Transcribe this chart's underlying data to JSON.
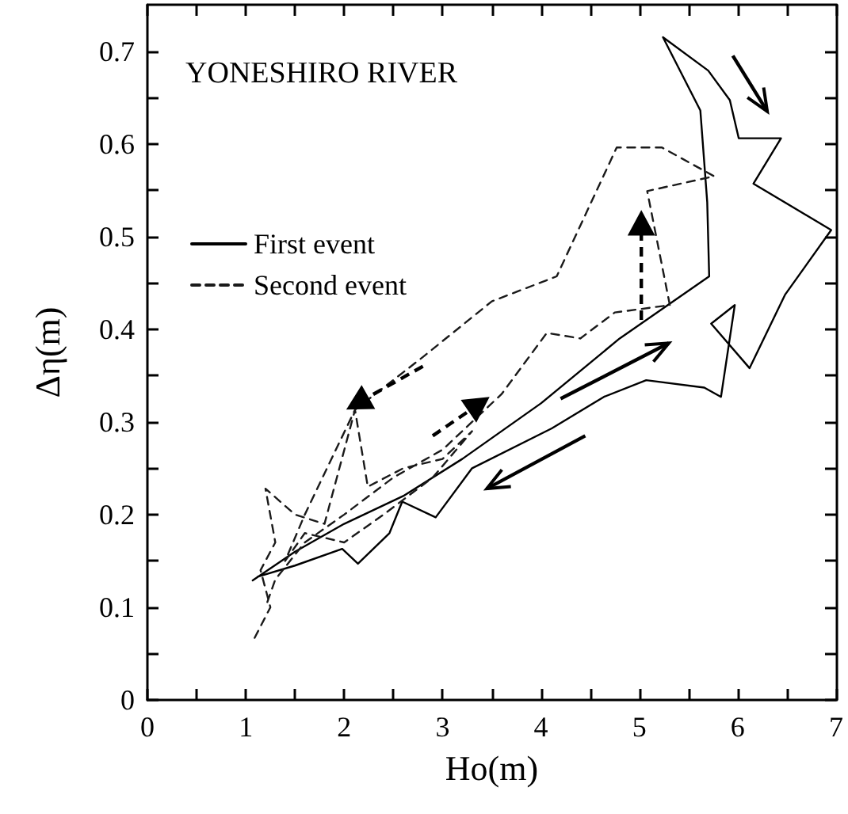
{
  "chart_data": {
    "type": "line",
    "title": "YONESHIRO RIVER",
    "xlabel": "Ho(m)",
    "ylabel": "Δη(m)",
    "legend": "top left",
    "marker": "none",
    "xlim": [
      0,
      7
    ],
    "ylim": [
      0,
      0.75
    ],
    "xticks": [
      0,
      {
        "value": 0.5,
        "label": null
      },
      1,
      {
        "value": 1.5,
        "label": null
      },
      2,
      {
        "value": 2.5,
        "label": null
      },
      3,
      {
        "value": 3.5,
        "label": null
      },
      4,
      {
        "value": 4.5,
        "label": null
      },
      5,
      {
        "value": 5.5,
        "label": null
      },
      6,
      {
        "value": 6.5,
        "label": null
      },
      7
    ],
    "yticks": [
      0,
      {
        "value": 0.05,
        "label": null
      },
      0.1,
      {
        "value": 0.15,
        "label": null
      },
      0.2,
      {
        "value": 0.25,
        "label": null
      },
      0.3,
      {
        "value": 0.35,
        "label": null
      },
      0.4,
      {
        "value": 0.45,
        "label": null
      },
      0.5,
      {
        "value": 0.55,
        "label": null
      },
      0.6,
      {
        "value": 0.65,
        "label": null
      },
      0.7
    ],
    "series": [
      {
        "name": "First event",
        "color": "#000000",
        "line_style": "solid",
        "x": [
          1.07,
          1.5,
          2.0,
          2.6,
          3.2,
          4.0,
          4.8,
          5.71,
          5.69,
          5.62,
          5.24,
          5.7,
          5.92,
          6.01,
          6.44,
          6.16,
          6.95,
          6.48,
          6.12,
          5.73,
          5.97,
          5.83,
          5.66,
          5.07,
          4.64,
          4.11,
          3.3,
          2.93,
          2.59,
          2.46,
          2.14,
          1.98,
          1.5,
          1.12
        ],
        "values": [
          0.129,
          0.16,
          0.19,
          0.22,
          0.26,
          0.32,
          0.39,
          0.457,
          0.537,
          0.636,
          0.715,
          0.679,
          0.647,
          0.606,
          0.606,
          0.557,
          0.507,
          0.437,
          0.358,
          0.406,
          0.426,
          0.327,
          0.337,
          0.345,
          0.327,
          0.293,
          0.25,
          0.197,
          0.214,
          0.18,
          0.147,
          0.163,
          0.145,
          0.133
        ]
      },
      {
        "name": "Second event",
        "color": "#1a1a1a",
        "line_style": "dashed",
        "x": [
          1.09,
          1.25,
          1.15,
          1.3,
          1.2,
          1.5,
          1.8,
          2.11,
          2.24,
          2.6,
          3.0,
          3.3,
          2.9,
          2.4,
          2.0,
          1.6,
          1.4,
          1.6,
          2.11,
          2.8,
          3.5,
          4.16,
          4.77,
          5.23,
          5.76,
          5.08,
          5.31,
          4.75,
          4.4,
          4.06,
          3.6,
          3.0,
          2.5,
          2.0,
          1.6,
          1.3,
          1.2
        ],
        "values": [
          0.067,
          0.1,
          0.14,
          0.17,
          0.228,
          0.2,
          0.19,
          0.313,
          0.23,
          0.25,
          0.26,
          0.29,
          0.24,
          0.2,
          0.17,
          0.18,
          0.15,
          0.2,
          0.313,
          0.37,
          0.43,
          0.457,
          0.596,
          0.596,
          0.565,
          0.549,
          0.426,
          0.418,
          0.39,
          0.396,
          0.33,
          0.27,
          0.24,
          0.2,
          0.17,
          0.13,
          0.1
        ]
      }
    ]
  }
}
